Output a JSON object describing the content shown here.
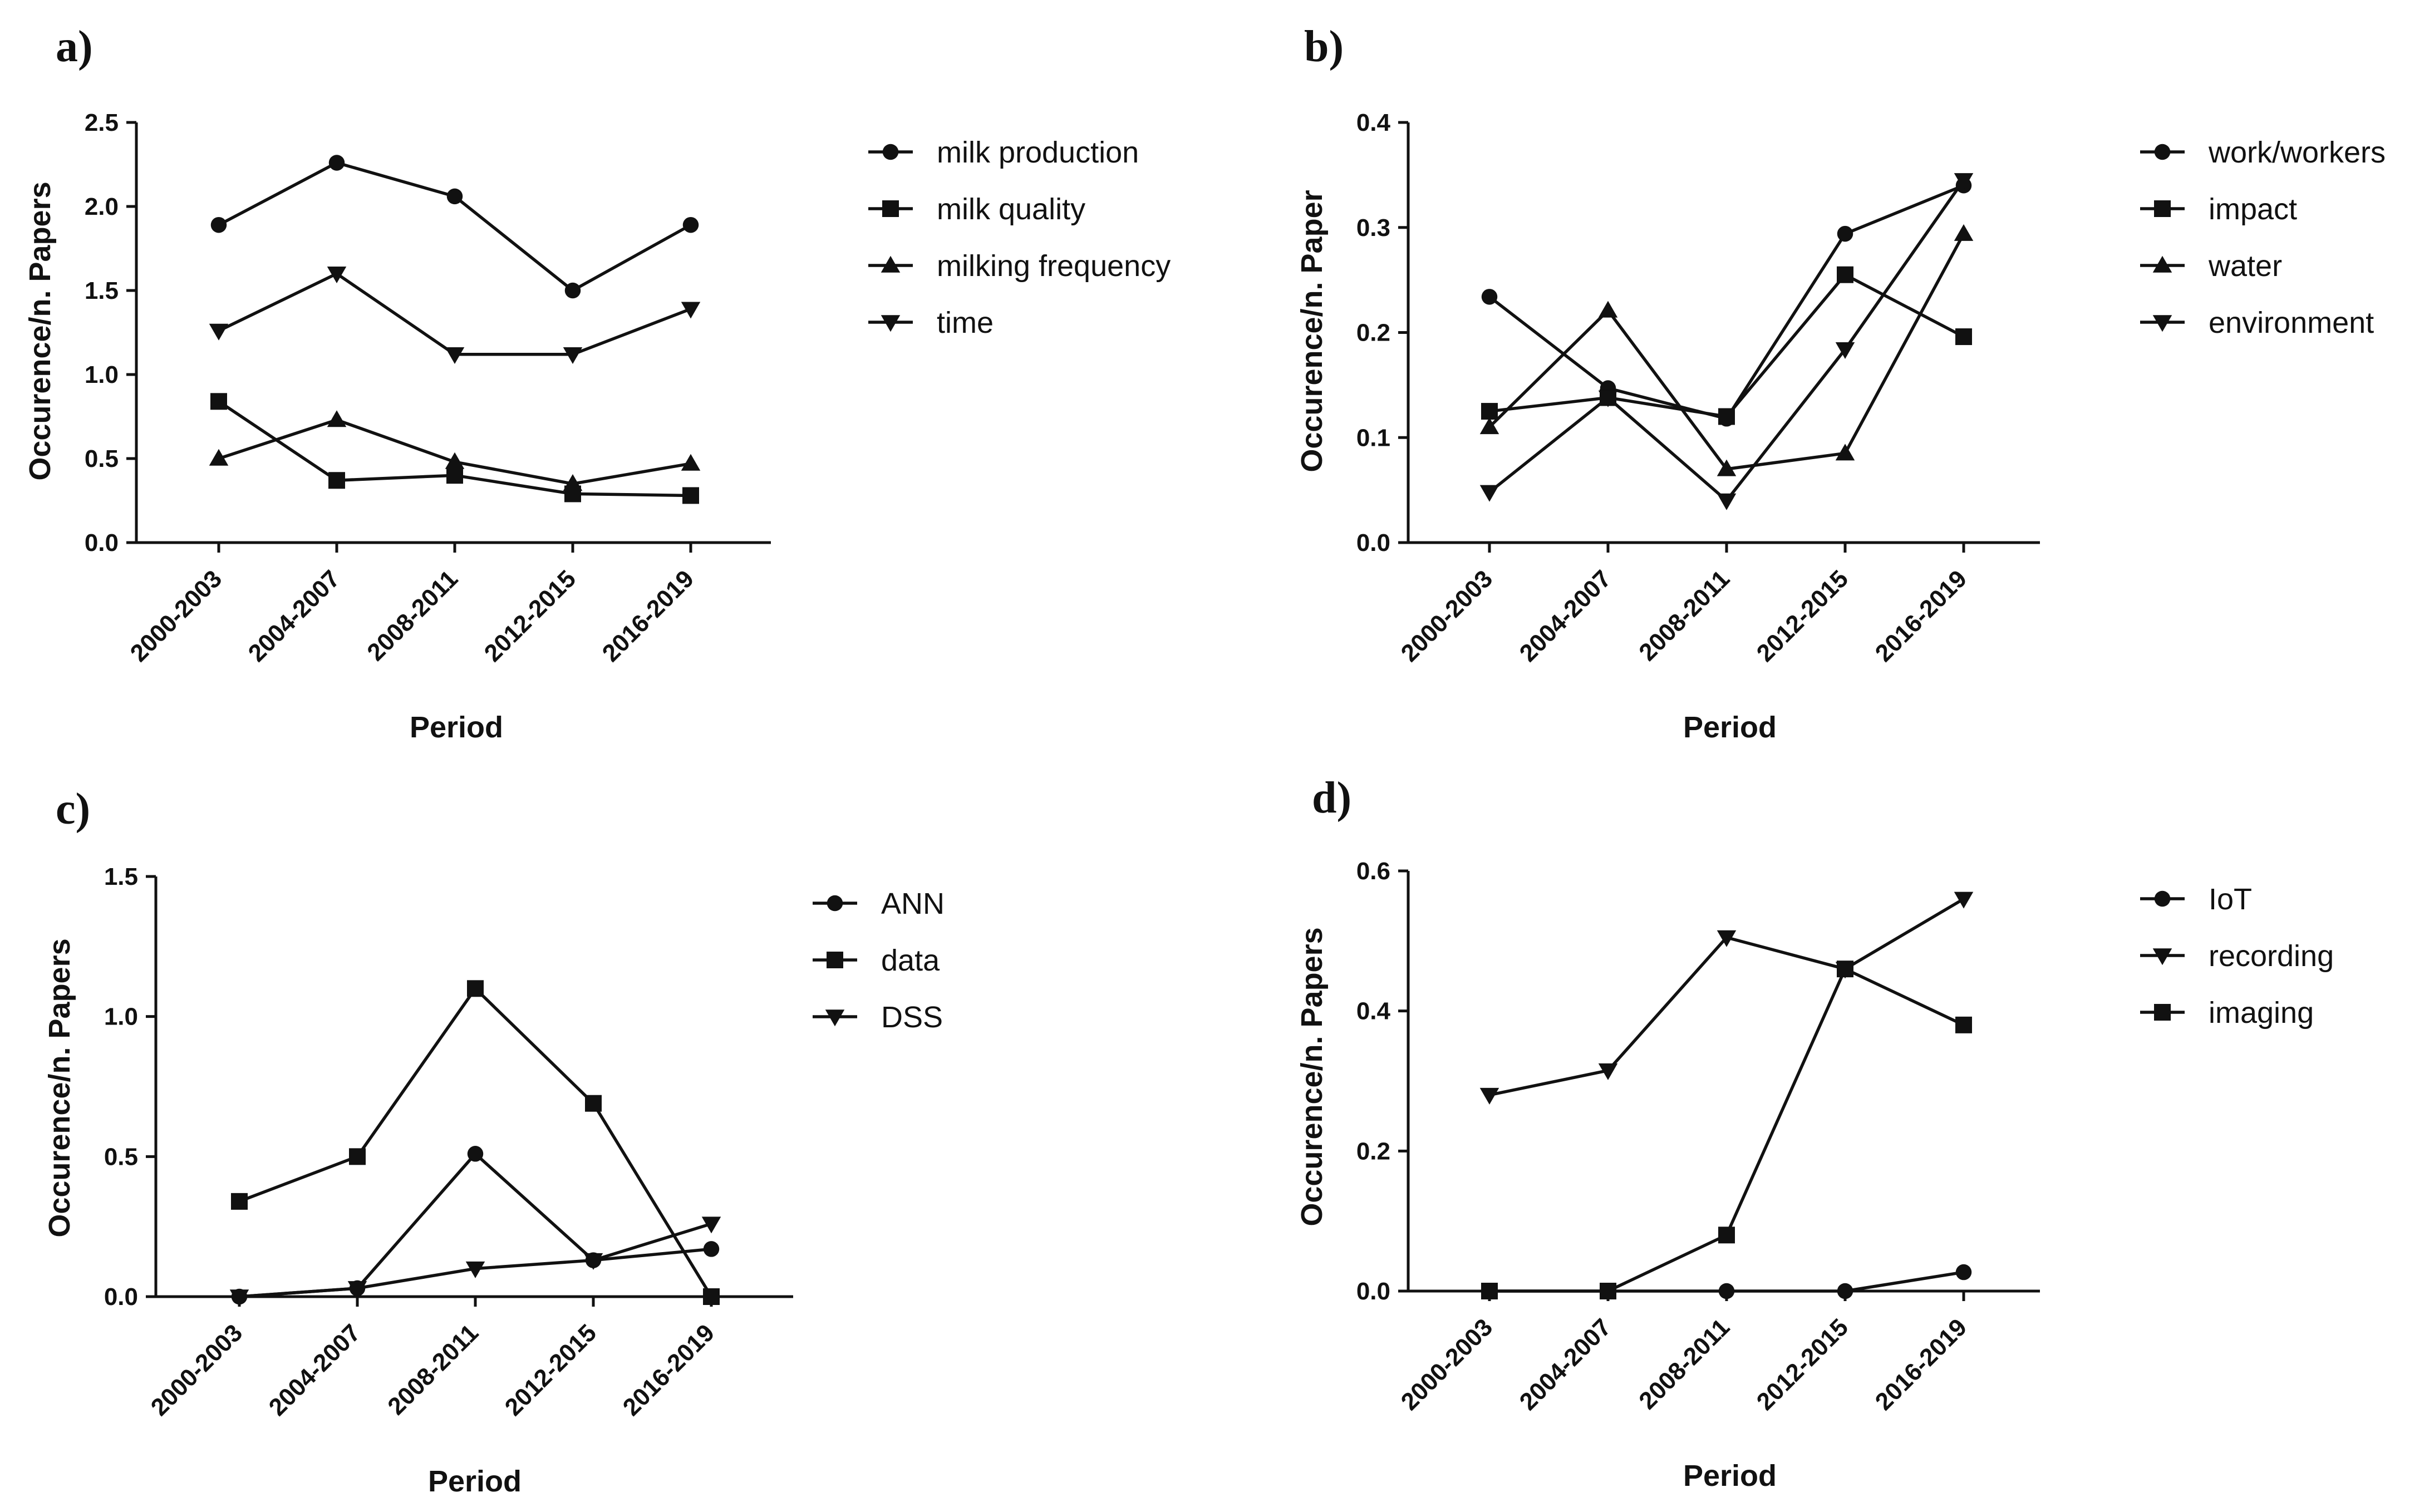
{
  "chart_data": [
    {
      "type": "line",
      "panel": "a)",
      "categories": [
        "2000-2003",
        "2004-2007",
        "2008-2011",
        "2012-2015",
        "2016-2019"
      ],
      "xlabel": "Period",
      "ylabel": "Occurence/n. Papers",
      "ylim": [
        0,
        2.5
      ],
      "yticks": [
        "0.0",
        "0.5",
        "1.0",
        "1.5",
        "2.0",
        "2.5"
      ],
      "legend_position": "right",
      "series": [
        {
          "name": "milk production",
          "marker": "circle",
          "values": [
            1.89,
            2.26,
            2.06,
            1.5,
            1.89
          ]
        },
        {
          "name": "milk quality",
          "marker": "square",
          "values": [
            0.84,
            0.37,
            0.4,
            0.29,
            0.28
          ]
        },
        {
          "name": "milking frequency",
          "marker": "triangle-up",
          "values": [
            0.5,
            0.73,
            0.48,
            0.35,
            0.47
          ]
        },
        {
          "name": "time",
          "marker": "triangle-down",
          "values": [
            1.26,
            1.6,
            1.12,
            1.12,
            1.39
          ]
        }
      ]
    },
    {
      "type": "line",
      "panel": "b)",
      "categories": [
        "2000-2003",
        "2004-2007",
        "2008-2011",
        "2012-2015",
        "2016-2019"
      ],
      "xlabel": "Period",
      "ylabel": "Occurence/n. Paper",
      "ylim": [
        0,
        0.4
      ],
      "yticks": [
        "0.0",
        "0.1",
        "0.2",
        "0.3",
        "0.4"
      ],
      "legend_position": "right",
      "series": [
        {
          "name": "work/workers",
          "marker": "circle",
          "values": [
            0.234,
            0.147,
            0.118,
            0.294,
            0.34
          ]
        },
        {
          "name": "impact",
          "marker": "square",
          "values": [
            0.125,
            0.138,
            0.12,
            0.255,
            0.196
          ]
        },
        {
          "name": "water",
          "marker": "triangle-up",
          "values": [
            0.11,
            0.221,
            0.07,
            0.085,
            0.294
          ]
        },
        {
          "name": "environment",
          "marker": "triangle-down",
          "values": [
            0.048,
            0.138,
            0.04,
            0.184,
            0.345
          ]
        }
      ]
    },
    {
      "type": "line",
      "panel": "c)",
      "categories": [
        "2000-2003",
        "2004-2007",
        "2008-2011",
        "2012-2015",
        "2016-2019"
      ],
      "xlabel": "Period",
      "ylabel": "Occurence/n. Papers",
      "ylim": [
        0,
        1.5
      ],
      "yticks": [
        "0.0",
        "0.5",
        "1.0",
        "1.5"
      ],
      "legend_position": "right",
      "series": [
        {
          "name": "ANN",
          "marker": "circle",
          "values": [
            0.0,
            0.03,
            0.51,
            0.13,
            0.17
          ]
        },
        {
          "name": "data",
          "marker": "square",
          "values": [
            0.34,
            0.5,
            1.1,
            0.69,
            0.0
          ]
        },
        {
          "name": "DSS",
          "marker": "triangle-down",
          "values": [
            0.0,
            0.03,
            0.1,
            0.13,
            0.26
          ]
        }
      ]
    },
    {
      "type": "line",
      "panel": "d)",
      "categories": [
        "2000-2003",
        "2004-2007",
        "2008-2011",
        "2012-2015",
        "2016-2019"
      ],
      "xlabel": "Period",
      "ylabel": "Occurence/n. Papers",
      "ylim": [
        0,
        0.6
      ],
      "yticks": [
        "0.0",
        "0.2",
        "0.4",
        "0.6"
      ],
      "legend_position": "right",
      "series": [
        {
          "name": "IoT",
          "marker": "circle",
          "values": [
            0.0,
            0.0,
            0.0,
            0.0,
            0.027
          ]
        },
        {
          "name": "recording",
          "marker": "triangle-down",
          "values": [
            0.28,
            0.315,
            0.505,
            0.46,
            0.56
          ]
        },
        {
          "name": "imaging",
          "marker": "square",
          "values": [
            0.0,
            0.0,
            0.08,
            0.46,
            0.38
          ]
        }
      ]
    }
  ]
}
